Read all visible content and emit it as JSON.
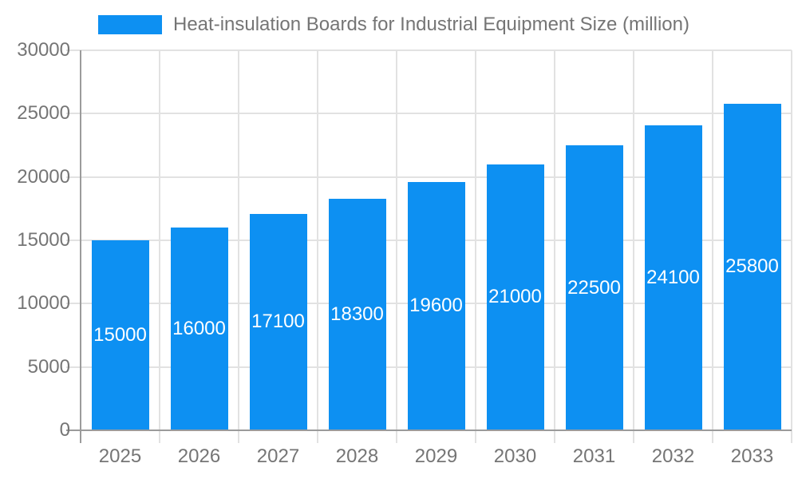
{
  "colors": {
    "bar": "#0D90F2",
    "grid": "#E2E2E2",
    "axis": "#9B9B9B",
    "text": "#757575",
    "bar_label": "#FFFFFF",
    "background": "#FFFFFF"
  },
  "legend": {
    "label": "Heat-insulation Boards for Industrial Equipment Size (million)"
  },
  "chart_data": {
    "type": "bar",
    "title": "Heat-insulation Boards for Industrial Equipment Size (million)",
    "categories": [
      "2025",
      "2026",
      "2027",
      "2028",
      "2029",
      "2030",
      "2031",
      "2032",
      "2033"
    ],
    "values": [
      15000,
      16000,
      17100,
      18300,
      19600,
      21000,
      22500,
      24100,
      25800
    ],
    "xlabel": "",
    "ylabel": "",
    "ylim": [
      0,
      30000
    ],
    "yticks": [
      0,
      5000,
      10000,
      15000,
      20000,
      25000,
      30000
    ],
    "grid": true,
    "legend_position": "top",
    "value_labels": "inside-center"
  }
}
